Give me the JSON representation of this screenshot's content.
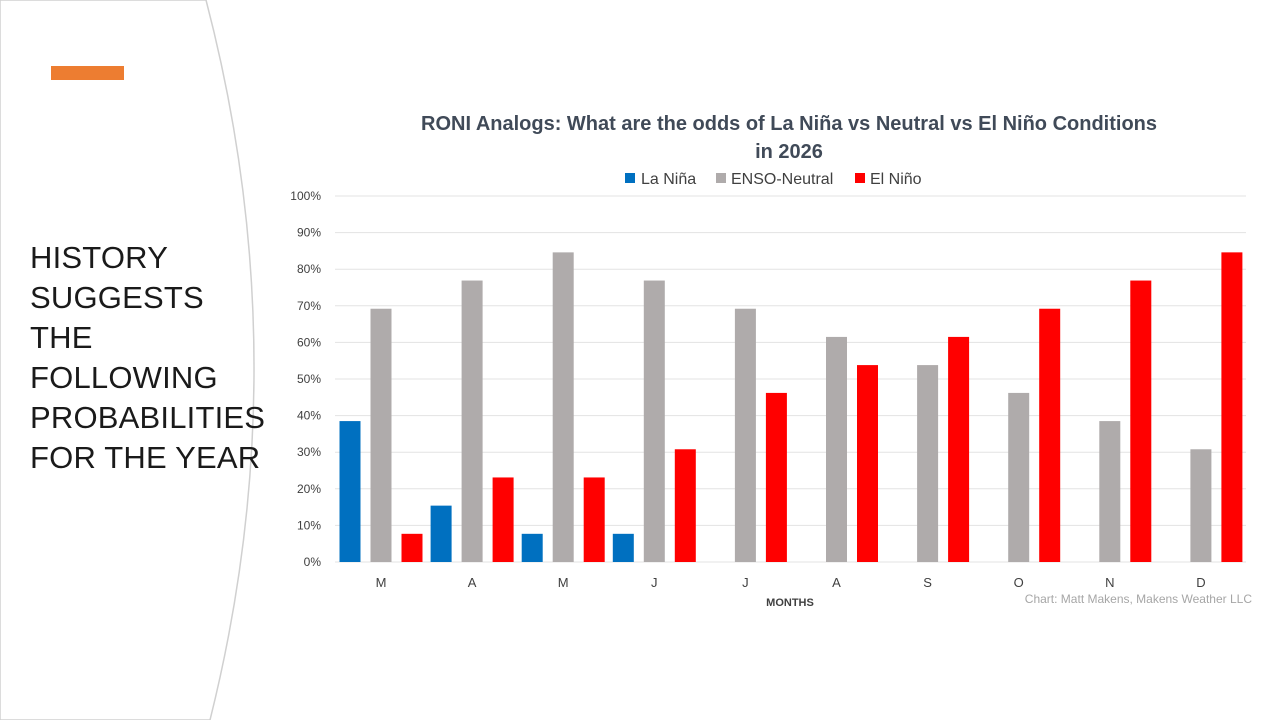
{
  "slide": {
    "accent_color": "#ED7D31",
    "side_lines": [
      "HISTORY",
      "SUGGESTS",
      "THE",
      "FOLLOWING",
      "PROBABILITIES",
      "FOR THE YEAR"
    ]
  },
  "chart_data": {
    "type": "bar",
    "title_lines": [
      "RONI Analogs: What are the odds of La Niña vs Neutral vs El Niño Conditions",
      "in 2026"
    ],
    "categories": [
      "M",
      "A",
      "M",
      "J",
      "J",
      "A",
      "S",
      "O",
      "N",
      "D"
    ],
    "series": [
      {
        "name": "La Niña",
        "color": "#0070C0",
        "values": [
          38.5,
          15.4,
          7.7,
          7.7,
          0,
          0,
          0,
          0,
          0,
          0
        ]
      },
      {
        "name": "ENSO-Neutral",
        "color": "#AFABAB",
        "values": [
          69.2,
          76.9,
          84.6,
          76.9,
          69.2,
          61.5,
          53.8,
          46.2,
          38.5,
          30.8
        ]
      },
      {
        "name": "El Niño",
        "color": "#FF0000",
        "values": [
          7.7,
          23.1,
          23.1,
          30.8,
          46.2,
          53.8,
          61.5,
          69.2,
          76.9,
          84.6
        ]
      }
    ],
    "y_ticks": [
      "0%",
      "10%",
      "20%",
      "30%",
      "40%",
      "50%",
      "60%",
      "70%",
      "80%",
      "90%",
      "100%"
    ],
    "ylim": [
      0,
      100
    ],
    "xlabel": "MONTHS",
    "ylabel": "",
    "legend_position": "top",
    "grid": true,
    "credit": "Chart: Matt Makens, Makens Weather LLC"
  }
}
